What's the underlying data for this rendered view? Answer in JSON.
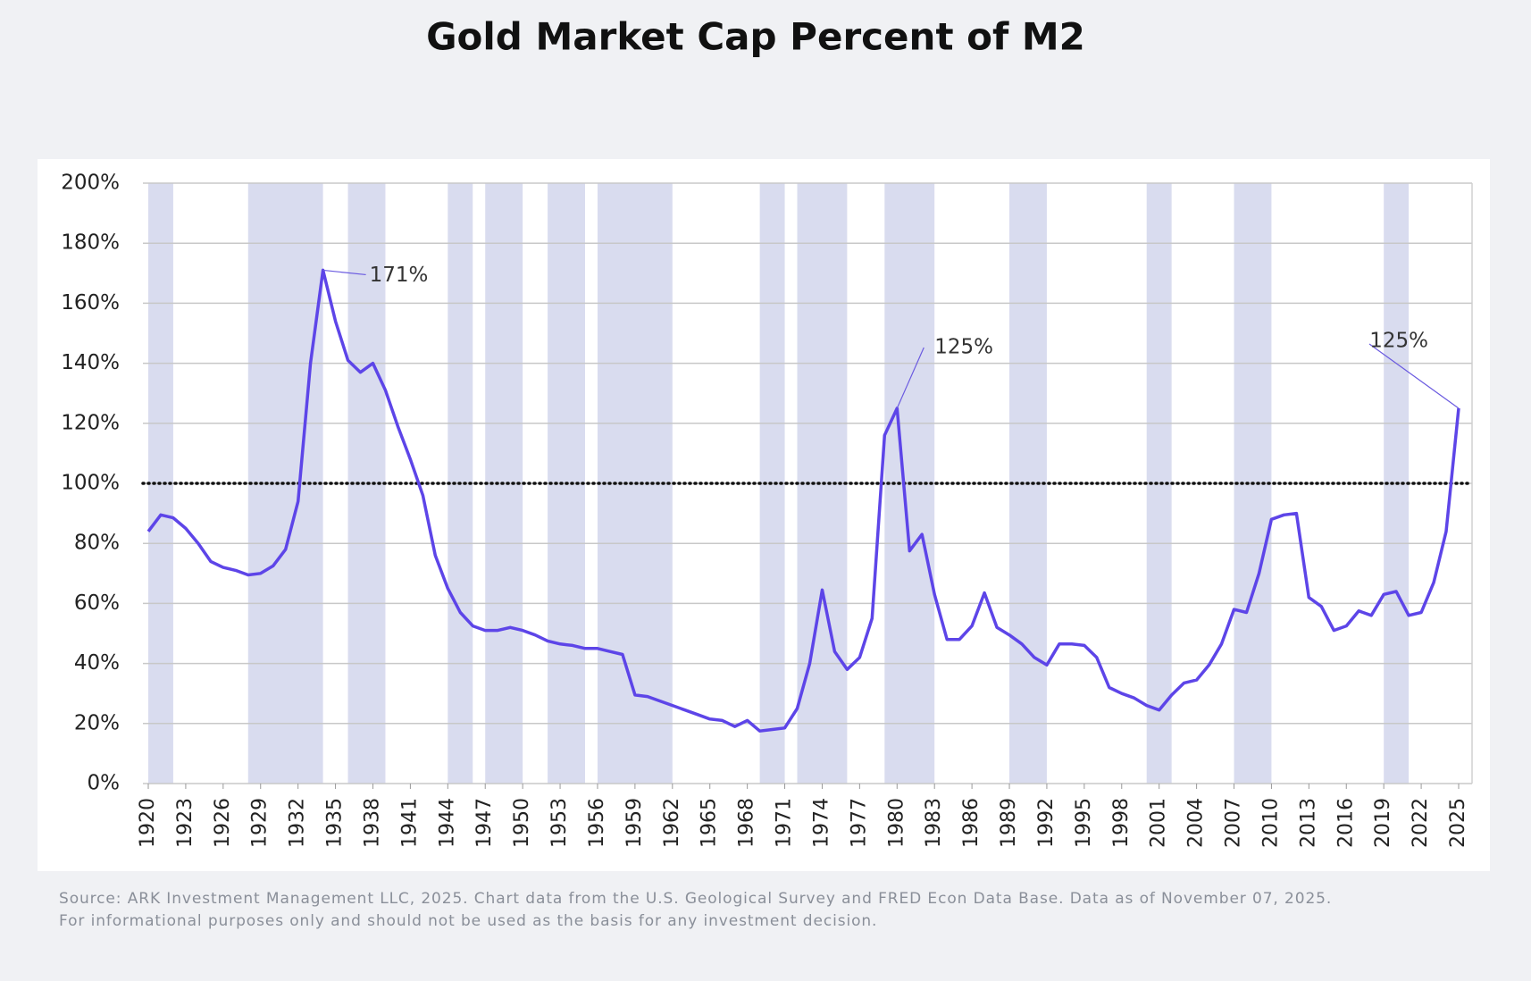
{
  "chart_data": {
    "type": "line",
    "title": "Gold Market Cap Percent of M2",
    "x": [
      1920,
      1921,
      1922,
      1923,
      1924,
      1925,
      1926,
      1927,
      1928,
      1929,
      1930,
      1931,
      1932,
      1933,
      1934,
      1935,
      1936,
      1937,
      1938,
      1939,
      1940,
      1941,
      1942,
      1943,
      1944,
      1945,
      1946,
      1947,
      1948,
      1949,
      1950,
      1951,
      1952,
      1953,
      1954,
      1955,
      1956,
      1957,
      1958,
      1959,
      1960,
      1961,
      1962,
      1963,
      1964,
      1965,
      1966,
      1967,
      1968,
      1969,
      1970,
      1971,
      1972,
      1973,
      1974,
      1975,
      1976,
      1977,
      1978,
      1979,
      1980,
      1981,
      1982,
      1983,
      1984,
      1985,
      1986,
      1987,
      1988,
      1989,
      1990,
      1991,
      1992,
      1993,
      1994,
      1995,
      1996,
      1997,
      1998,
      1999,
      2000,
      2001,
      2002,
      2003,
      2004,
      2005,
      2006,
      2007,
      2008,
      2009,
      2010,
      2011,
      2012,
      2013,
      2014,
      2015,
      2016,
      2017,
      2018,
      2019,
      2020,
      2021,
      2022,
      2023,
      2024,
      2025
    ],
    "series": [
      {
        "color": "#5d45e8",
        "values": [
          84,
          89.5,
          88.5,
          85,
          80,
          74,
          72,
          71,
          69.5,
          70,
          72.5,
          78,
          94,
          140,
          171,
          154,
          141,
          137,
          140,
          131,
          119,
          108,
          96,
          76,
          65,
          57,
          52.5,
          51,
          51,
          52,
          51,
          49.5,
          47.5,
          46.5,
          46,
          45,
          45,
          44,
          43,
          29.5,
          29,
          27.5,
          26,
          24.5,
          23,
          21.5,
          21,
          19,
          21,
          17.5,
          18,
          18.5,
          25,
          40,
          64.5,
          44,
          38,
          42,
          55,
          116,
          125,
          77.5,
          83,
          63,
          48,
          48,
          52.5,
          63.5,
          52,
          49.5,
          46.5,
          42,
          39.5,
          46.5,
          46.5,
          46,
          42,
          32,
          30,
          28.5,
          26,
          24.5,
          29.5,
          33.5,
          34.5,
          39.5,
          46.5,
          58,
          57,
          70,
          88,
          89.5,
          90,
          62,
          59,
          51,
          52.5,
          57.5,
          56,
          63,
          64,
          56,
          57,
          67,
          84,
          125
        ]
      }
    ],
    "shaded_ranges": [
      [
        1920,
        1922
      ],
      [
        1928,
        1934
      ],
      [
        1936,
        1939
      ],
      [
        1944,
        1946
      ],
      [
        1947,
        1950
      ],
      [
        1952,
        1955
      ],
      [
        1956,
        1962
      ],
      [
        1969,
        1971
      ],
      [
        1972,
        1976
      ],
      [
        1979,
        1983
      ],
      [
        1989,
        1992
      ],
      [
        2000,
        2002
      ],
      [
        2007,
        2010
      ],
      [
        2019,
        2021
      ]
    ],
    "shade_color": "#d9dcef",
    "reference_line": 100,
    "annotations": [
      {
        "text": "171%",
        "x": 1934,
        "value": 171
      },
      {
        "text": "125%",
        "x": 1980,
        "value": 125
      },
      {
        "text": "125%",
        "x": 2025,
        "value": 125
      }
    ],
    "xlim": [
      1920,
      2025
    ],
    "xticks": [
      1920,
      1923,
      1926,
      1929,
      1932,
      1935,
      1938,
      1941,
      1944,
      1947,
      1950,
      1953,
      1956,
      1959,
      1962,
      1965,
      1968,
      1971,
      1974,
      1977,
      1980,
      1983,
      1986,
      1989,
      1992,
      1995,
      1998,
      2001,
      2004,
      2007,
      2010,
      2013,
      2016,
      2019,
      2022,
      2025
    ],
    "ylim": [
      0,
      200
    ],
    "yticks": [
      {
        "value": 0,
        "label": "0%"
      },
      {
        "value": 20,
        "label": "20%"
      },
      {
        "value": 40,
        "label": "40%"
      },
      {
        "value": 60,
        "label": "60%"
      },
      {
        "value": 80,
        "label": "80%"
      },
      {
        "value": 100,
        "label": "100%"
      },
      {
        "value": 120,
        "label": "120%"
      },
      {
        "value": 140,
        "label": "140%"
      },
      {
        "value": 160,
        "label": "160%"
      },
      {
        "value": 180,
        "label": "180%"
      },
      {
        "value": 200,
        "label": "200%"
      }
    ],
    "grid": true,
    "source": [
      "Source: ARK Investment Management LLC, 2025. Chart data from the U.S. Geological Survey and FRED Econ Data Base. Data as of November 07, 2025.",
      "For informational purposes only and should not be used as the basis for any investment decision."
    ]
  }
}
